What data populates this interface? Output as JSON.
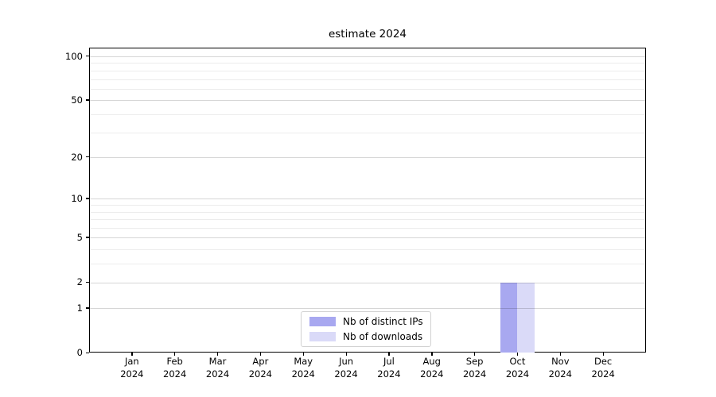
{
  "title": "estimate 2024",
  "colors": {
    "bar_distinct_ips": "#a8a8f0",
    "bar_downloads": "#dadaf8",
    "spine": "#000000",
    "grid_major": "#cdcdcd",
    "grid_minor": "#ececec",
    "legend_border": "#d2d2d2",
    "text": "#000000",
    "background": "#ffffff"
  },
  "chart_data": {
    "type": "bar",
    "title": "estimate 2024",
    "xlabel": "",
    "ylabel": "",
    "categories": [
      {
        "month": "Jan",
        "year": "2024"
      },
      {
        "month": "Feb",
        "year": "2024"
      },
      {
        "month": "Mar",
        "year": "2024"
      },
      {
        "month": "Apr",
        "year": "2024"
      },
      {
        "month": "May",
        "year": "2024"
      },
      {
        "month": "Jun",
        "year": "2024"
      },
      {
        "month": "Jul",
        "year": "2024"
      },
      {
        "month": "Aug",
        "year": "2024"
      },
      {
        "month": "Sep",
        "year": "2024"
      },
      {
        "month": "Oct",
        "year": "2024"
      },
      {
        "month": "Nov",
        "year": "2024"
      },
      {
        "month": "Dec",
        "year": "2024"
      }
    ],
    "series": [
      {
        "name": "Nb of distinct IPs",
        "color": "#a8a8f0",
        "values": [
          0,
          0,
          0,
          0,
          0,
          0,
          0,
          0,
          0,
          2,
          0,
          0
        ]
      },
      {
        "name": "Nb of downloads",
        "color": "#dadaf8",
        "values": [
          0,
          0,
          0,
          0,
          0,
          0,
          0,
          0,
          0,
          2,
          0,
          0
        ]
      }
    ],
    "y_scale": "log1p",
    "y_major_ticks": [
      0,
      1,
      2,
      5,
      10,
      20,
      50,
      100
    ],
    "y_minor_gridlines": [
      3,
      4,
      6,
      7,
      8,
      9,
      30,
      40,
      60,
      70,
      80,
      90
    ],
    "y_top_value": 114,
    "grid": true,
    "legend_position": "lower center"
  },
  "legend": {
    "items": [
      {
        "label": "Nb of distinct IPs"
      },
      {
        "label": "Nb of downloads"
      }
    ]
  }
}
